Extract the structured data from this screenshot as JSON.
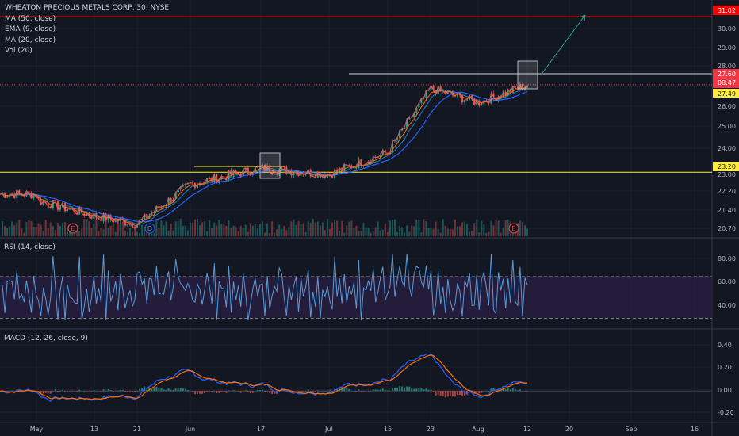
{
  "legend": {
    "title": "WHEATON PRECIOUS METALS CORP, 30, NYSE",
    "lines": [
      "MA (50, close)",
      "EMA (9, close)",
      "MA (20, close)",
      "Vol (20)"
    ]
  },
  "rsi_title": "RSI (14, close)",
  "macd_title": "MACD (12, 26, close, 9)",
  "colors": {
    "background": "#131722",
    "grid": "#1e222d",
    "up": "#26a69a",
    "down": "#ef5350",
    "ma50": "#2962ff",
    "ema9": "#ff6d00",
    "ma20": "#2196f3",
    "rsi": "#5b9bd5",
    "rsi_band": "#2a1f44",
    "macd": "#2962ff",
    "signal": "#ff6d00",
    "resistance": "#ff0000",
    "support": "#ffeb3b",
    "price_badge": "#f23645"
  },
  "price_axis": {
    "ticks": [
      "30.00",
      "29.00",
      "28.00",
      "26.00",
      "25.00",
      "24.00",
      "22.20",
      "21.40",
      "20.70"
    ],
    "labels": {
      "resistance": "31.02",
      "last_price": "27.60",
      "countdown": "08:47",
      "prev": "27.49",
      "support": "23.20",
      "below_support": "23.00"
    }
  },
  "rsi_axis": {
    "ticks": [
      "80.00",
      "60.00",
      "40.00"
    ]
  },
  "macd_axis": {
    "ticks": [
      "0.40",
      "0.20",
      "0.00",
      "-0.20"
    ]
  },
  "time_axis": {
    "labels": [
      "May",
      "13",
      "21",
      "Jun",
      "17",
      "Jul",
      "15",
      "23",
      "Aug",
      "12",
      "20",
      "Sep",
      "16"
    ]
  },
  "event_markers": [
    "E",
    "D",
    "E"
  ],
  "chart_data": {
    "type": "line",
    "title": "WHEATON PRECIOUS METALS CORP, 30, NYSE",
    "xlabel": "",
    "ylabel": "",
    "series": [
      {
        "name": "",
        "x": [
          "May",
          "13",
          "21",
          "Jun",
          "17",
          "Jul",
          "15",
          "23",
          "Aug",
          "12"
        ],
        "values": [
          21.8,
          21.0,
          20.6,
          22.6,
          23.4,
          23.1,
          24.2,
          27.4,
          26.7,
          27.6
        ]
      }
    ],
    "ylim": [
      20.3,
      31.3
    ],
    "horizontal_lines": [
      31.02,
      23.2
    ],
    "rsi_levels": [
      70,
      30
    ],
    "rsi_ylim": [
      22,
      98
    ],
    "macd_ylim": [
      -0.28,
      0.52
    ]
  }
}
